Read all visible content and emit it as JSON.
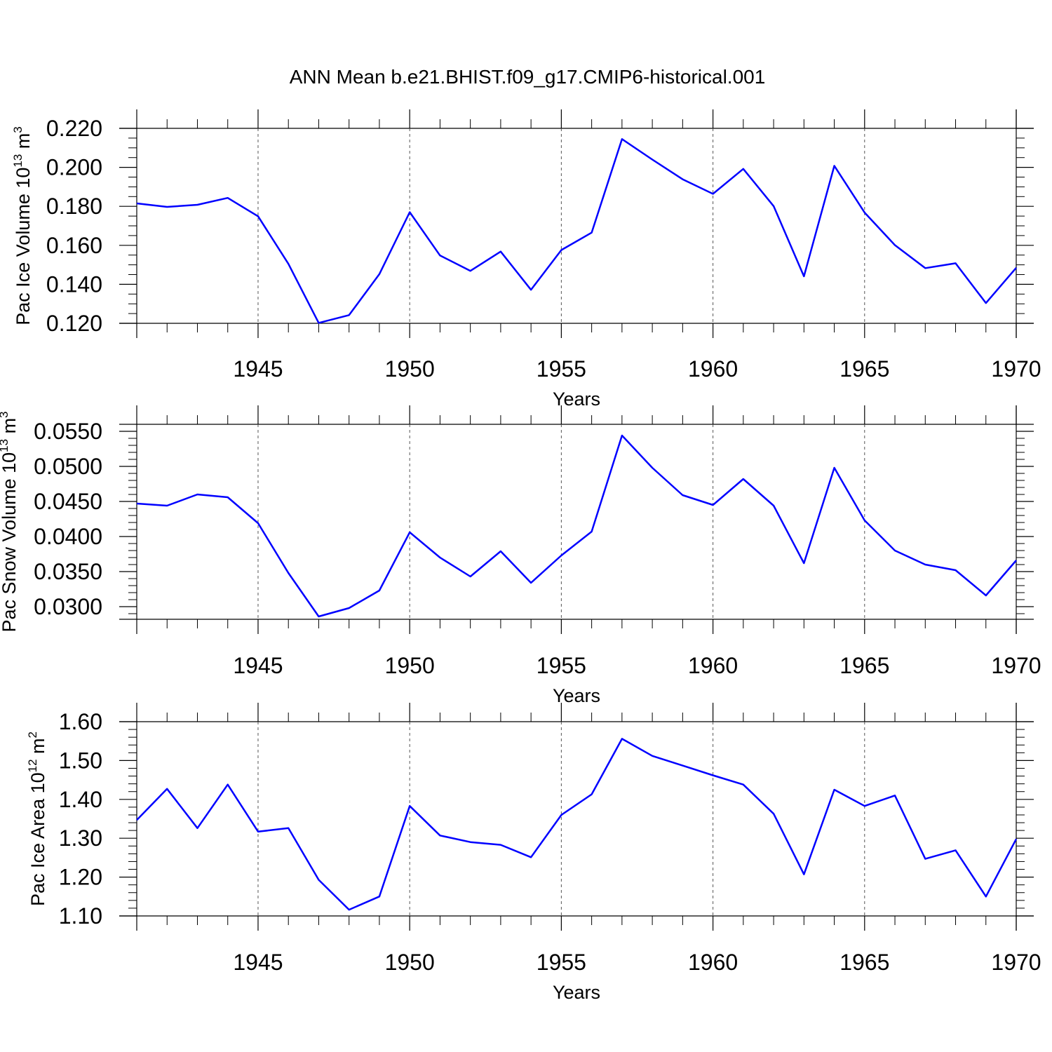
{
  "title": "ANN Mean b.e21.BHIST.f09_g17.CMIP6-historical.001",
  "chart_data": [
    {
      "type": "line",
      "xlabel": "Years",
      "ylabel": "Pac Ice Volume 10",
      "ylabel_exp": "13",
      "ylabel_unit": " m",
      "ylabel_unit_exp": "3",
      "xlim": [
        1941,
        1970
      ],
      "ylim": [
        0.12,
        0.22
      ],
      "yticks": [
        0.12,
        0.14,
        0.16,
        0.18,
        0.2,
        0.22
      ],
      "ytick_labels": [
        "0.120",
        "0.140",
        "0.160",
        "0.180",
        "0.200",
        "0.220"
      ],
      "xticks": [
        1945,
        1950,
        1955,
        1960,
        1965,
        1970
      ],
      "xtick_labels": [
        "1945",
        "1950",
        "1955",
        "1960",
        "1965",
        "1970"
      ],
      "x": [
        1941,
        1942,
        1943,
        1944,
        1945,
        1946,
        1947,
        1948,
        1949,
        1950,
        1951,
        1952,
        1953,
        1954,
        1955,
        1956,
        1957,
        1958,
        1959,
        1960,
        1961,
        1962,
        1963,
        1964,
        1965,
        1966,
        1967,
        1968,
        1969,
        1970
      ],
      "values": [
        0.1815,
        0.1797,
        0.1808,
        0.1843,
        0.1749,
        0.1505,
        0.1202,
        0.1242,
        0.1452,
        0.177,
        0.1548,
        0.1469,
        0.1568,
        0.1372,
        0.1576,
        0.1665,
        0.2145,
        0.204,
        0.1939,
        0.1864,
        0.1992,
        0.1801,
        0.1441,
        0.2008,
        0.1768,
        0.1601,
        0.1483,
        0.1508,
        0.1304,
        0.1485
      ],
      "color": "#0000ff",
      "grid": "dashed vertical lines at labeled years"
    },
    {
      "type": "line",
      "xlabel": "Years",
      "ylabel": "Pac Snow Volume 10",
      "ylabel_exp": "13",
      "ylabel_unit": " m",
      "ylabel_unit_exp": "3",
      "xlim": [
        1941,
        1970
      ],
      "ylim": [
        0.0282,
        0.056
      ],
      "yticks": [
        0.03,
        0.035,
        0.04,
        0.045,
        0.05,
        0.055
      ],
      "ytick_labels": [
        "0.0300",
        "0.0350",
        "0.0400",
        "0.0450",
        "0.0500",
        "0.0550"
      ],
      "xticks": [
        1945,
        1950,
        1955,
        1960,
        1965,
        1970
      ],
      "xtick_labels": [
        "1945",
        "1950",
        "1955",
        "1960",
        "1965",
        "1970"
      ],
      "x": [
        1941,
        1942,
        1943,
        1944,
        1945,
        1946,
        1947,
        1948,
        1949,
        1950,
        1951,
        1952,
        1953,
        1954,
        1955,
        1956,
        1957,
        1958,
        1959,
        1960,
        1961,
        1962,
        1963,
        1964,
        1965,
        1966,
        1967,
        1968,
        1969,
        1970
      ],
      "values": [
        0.0447,
        0.0444,
        0.046,
        0.0456,
        0.0419,
        0.0348,
        0.0286,
        0.0298,
        0.0323,
        0.0406,
        0.037,
        0.0343,
        0.0379,
        0.0334,
        0.0373,
        0.0407,
        0.0544,
        0.0498,
        0.0459,
        0.0445,
        0.0482,
        0.0444,
        0.0362,
        0.0498,
        0.0423,
        0.038,
        0.036,
        0.0352,
        0.0316,
        0.0366
      ],
      "color": "#0000ff",
      "grid": "dashed vertical lines at labeled years"
    },
    {
      "type": "line",
      "xlabel": "Years",
      "ylabel": "Pac Ice Area 10",
      "ylabel_exp": "12",
      "ylabel_unit": " m",
      "ylabel_unit_exp": "2",
      "xlim": [
        1941,
        1970
      ],
      "ylim": [
        1.1,
        1.6
      ],
      "yticks": [
        1.1,
        1.2,
        1.3,
        1.4,
        1.5,
        1.6
      ],
      "ytick_labels": [
        "1.10",
        "1.20",
        "1.30",
        "1.40",
        "1.50",
        "1.60"
      ],
      "xticks": [
        1945,
        1950,
        1955,
        1960,
        1965,
        1970
      ],
      "xtick_labels": [
        "1945",
        "1950",
        "1955",
        "1960",
        "1965",
        "1970"
      ],
      "x": [
        1941,
        1942,
        1943,
        1944,
        1945,
        1946,
        1947,
        1948,
        1949,
        1950,
        1951,
        1952,
        1953,
        1954,
        1955,
        1956,
        1957,
        1958,
        1959,
        1960,
        1961,
        1962,
        1963,
        1964,
        1965,
        1966,
        1967,
        1968,
        1969,
        1970
      ],
      "values": [
        1.347,
        1.427,
        1.326,
        1.438,
        1.317,
        1.326,
        1.193,
        1.116,
        1.15,
        1.383,
        1.307,
        1.29,
        1.283,
        1.251,
        1.36,
        1.413,
        1.556,
        1.512,
        1.487,
        1.462,
        1.438,
        1.363,
        1.207,
        1.425,
        1.383,
        1.41,
        1.247,
        1.269,
        1.15,
        1.298
      ],
      "color": "#0000ff",
      "grid": "dashed vertical lines at labeled years"
    }
  ]
}
